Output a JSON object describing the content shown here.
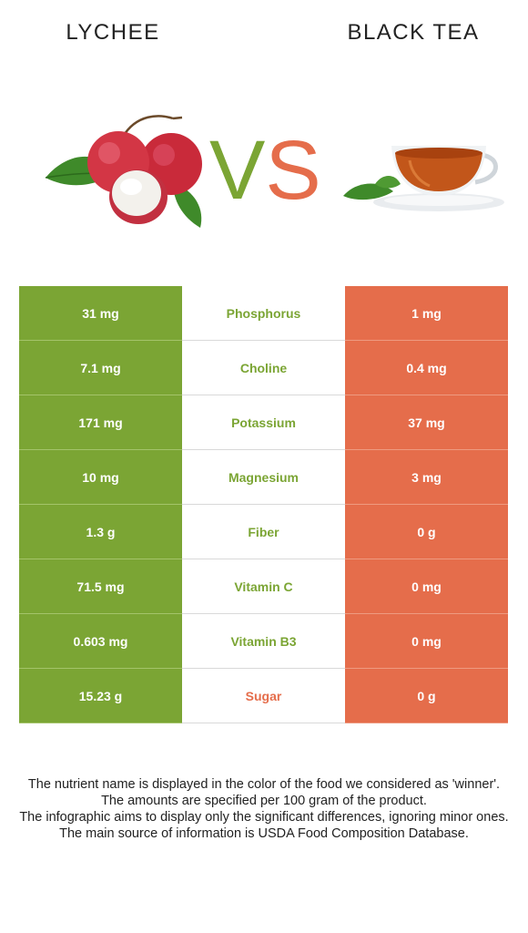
{
  "header": {
    "left_title": "LYCHEE",
    "right_title": "BLACK TEA",
    "vs_text": "VS"
  },
  "colors": {
    "winner_left": "#7ba534",
    "winner_right": "#e56d4b"
  },
  "rows": [
    {
      "nutrient": "Phosphorus",
      "left": "31 mg",
      "right": "1 mg",
      "winner": "left"
    },
    {
      "nutrient": "Choline",
      "left": "7.1 mg",
      "right": "0.4 mg",
      "winner": "left"
    },
    {
      "nutrient": "Potassium",
      "left": "171 mg",
      "right": "37 mg",
      "winner": "left"
    },
    {
      "nutrient": "Magnesium",
      "left": "10 mg",
      "right": "3 mg",
      "winner": "left"
    },
    {
      "nutrient": "Fiber",
      "left": "1.3 g",
      "right": "0 g",
      "winner": "left"
    },
    {
      "nutrient": "Vitamin C",
      "left": "71.5 mg",
      "right": "0 mg",
      "winner": "left"
    },
    {
      "nutrient": "Vitamin B3",
      "left": "0.603 mg",
      "right": "0 mg",
      "winner": "left"
    },
    {
      "nutrient": "Sugar",
      "left": "15.23 g",
      "right": "0 g",
      "winner": "right"
    }
  ],
  "footer": {
    "line1": "The nutrient name is displayed in the color of the food we considered as 'winner'.",
    "line2": "The amounts are specified per 100 gram of the product.",
    "line3": "The infographic aims to display only the significant differences, ignoring minor ones.",
    "line4": "The main source of information is USDA Food Composition Database."
  }
}
